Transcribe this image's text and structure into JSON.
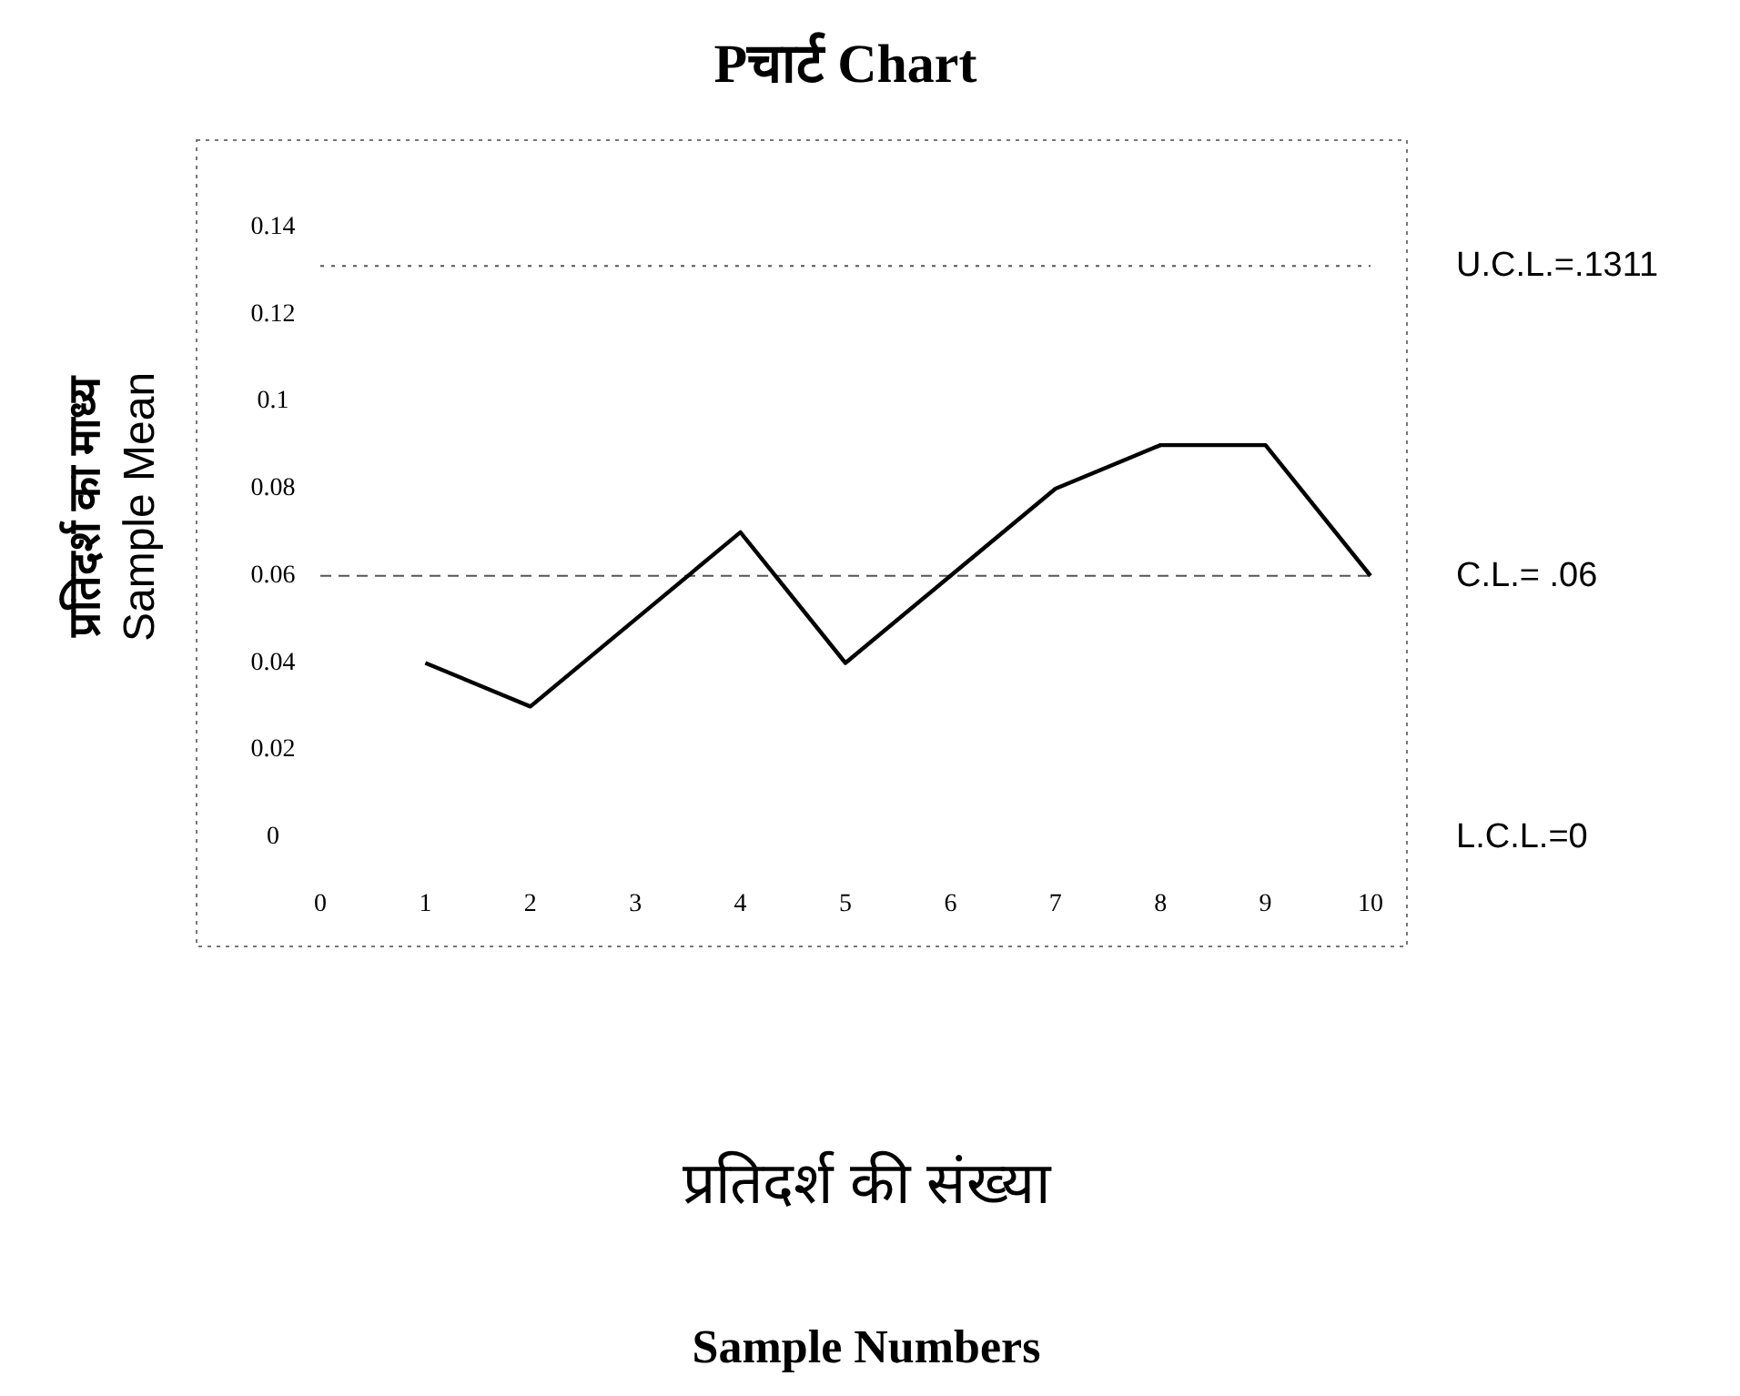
{
  "chart_data": {
    "type": "line",
    "title": "Pचार्ट Chart",
    "xlabel": "प्रतिदर्श की संख्या\nSample Numbers",
    "ylabel": "प्रतिदर्श का माध्य\nSample Mean",
    "x": [
      1,
      2,
      3,
      4,
      5,
      6,
      7,
      8,
      9,
      10
    ],
    "series": [
      {
        "color": "#000000",
        "values": [
          0.04,
          0.03,
          0.05,
          0.07,
          0.04,
          0.06,
          0.08,
          0.09,
          0.09,
          0.06
        ]
      }
    ],
    "xlim": [
      0,
      10
    ],
    "xticks": [
      0,
      1,
      2,
      3,
      4,
      5,
      6,
      7,
      8,
      9,
      10
    ],
    "ylim": [
      0,
      0.16
    ],
    "yticks": [
      0,
      0.02,
      0.04,
      {
        "value": 0.06,
        "label": "0.06"
      },
      0.08,
      0.1,
      0.12,
      0.14
    ],
    "ref_lines": [
      {
        "axis": "y",
        "value": 0.1311,
        "label": "U.C.L.=.1311",
        "line_style": "dotted",
        "color": "#555555"
      },
      {
        "axis": "y",
        "value": 0.06,
        "label": "C.L.= .06",
        "line_style": "dashed",
        "color": "#555555"
      }
    ],
    "annotations": [
      "L.C.L.=0"
    ],
    "grid": false,
    "marker": "none",
    "line_style": "solid"
  }
}
